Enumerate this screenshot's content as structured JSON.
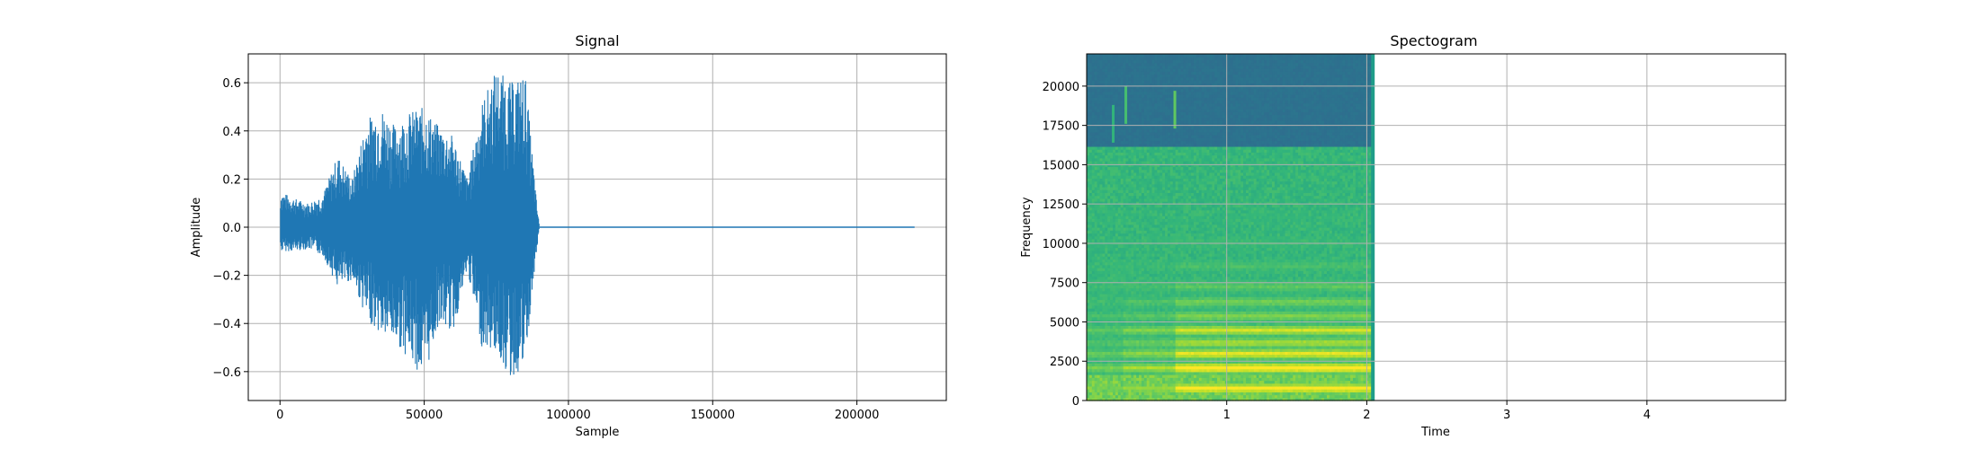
{
  "chart_data": [
    {
      "type": "line",
      "title": "Signal",
      "xlabel": "Sample",
      "ylabel": "Amplitude",
      "xlim": [
        -11000,
        231000
      ],
      "ylim": [
        -0.72,
        0.72
      ],
      "xticks": [
        0,
        50000,
        100000,
        150000,
        200000
      ],
      "xtick_labels": [
        "0",
        "50000",
        "100000",
        "150000",
        "200000"
      ],
      "yticks": [
        -0.6,
        -0.4,
        -0.2,
        0.0,
        0.2,
        0.4,
        0.6
      ],
      "ytick_labels": [
        "−0.6",
        "−0.4",
        "−0.2",
        "0.0",
        "0.2",
        "0.4",
        "0.6"
      ],
      "grid": true,
      "color": "#1f77b4",
      "series": [
        {
          "x": [
            0,
            5000,
            10000,
            15000,
            20000,
            25000,
            30000,
            35000,
            40000,
            45000,
            50000,
            55000,
            60000,
            65000,
            70000,
            75000,
            80000,
            85000,
            89000,
            90000,
            220000
          ],
          "upper": [
            0.15,
            0.12,
            0.1,
            0.14,
            0.3,
            0.2,
            0.45,
            0.5,
            0.42,
            0.48,
            0.5,
            0.42,
            0.38,
            0.2,
            0.52,
            0.66,
            0.6,
            0.64,
            0.1,
            0.0,
            0.0
          ],
          "lower": [
            -0.1,
            -0.1,
            -0.09,
            -0.12,
            -0.25,
            -0.22,
            -0.38,
            -0.45,
            -0.48,
            -0.55,
            -0.64,
            -0.4,
            -0.44,
            -0.18,
            -0.5,
            -0.52,
            -0.64,
            -0.58,
            -0.1,
            0.0,
            0.0
          ]
        }
      ]
    },
    {
      "type": "heatmap",
      "title": "Spectogram",
      "xlabel": "Time",
      "ylabel": "Frequency",
      "xlim": [
        0,
        4.99
      ],
      "ylim": [
        0,
        22050
      ],
      "xticks": [
        1,
        2,
        3,
        4
      ],
      "xtick_labels": [
        "1",
        "2",
        "3",
        "4"
      ],
      "yticks": [
        0,
        2500,
        5000,
        7500,
        10000,
        12500,
        15000,
        17500,
        20000
      ],
      "ytick_labels": [
        "0",
        "2500",
        "5000",
        "7500",
        "10000",
        "12500",
        "15000",
        "17500",
        "20000"
      ],
      "grid": true,
      "colormap": "viridis",
      "signal_end_time": 2.05,
      "cutoff_frequency": 16000,
      "bright_bands": [
        {
          "freq": 700,
          "intensity": 0.95
        },
        {
          "freq": 2000,
          "intensity": 1.0
        },
        {
          "freq": 2900,
          "intensity": 0.9
        },
        {
          "freq": 3600,
          "intensity": 0.8
        },
        {
          "freq": 4400,
          "intensity": 0.85
        },
        {
          "freq": 5300,
          "intensity": 0.72
        },
        {
          "freq": 6200,
          "intensity": 0.7
        },
        {
          "freq": 7200,
          "intensity": 0.66
        },
        {
          "freq": 8500,
          "intensity": 0.62
        },
        {
          "freq": 10000,
          "intensity": 0.58
        },
        {
          "freq": 11500,
          "intensity": 0.55
        }
      ]
    }
  ]
}
